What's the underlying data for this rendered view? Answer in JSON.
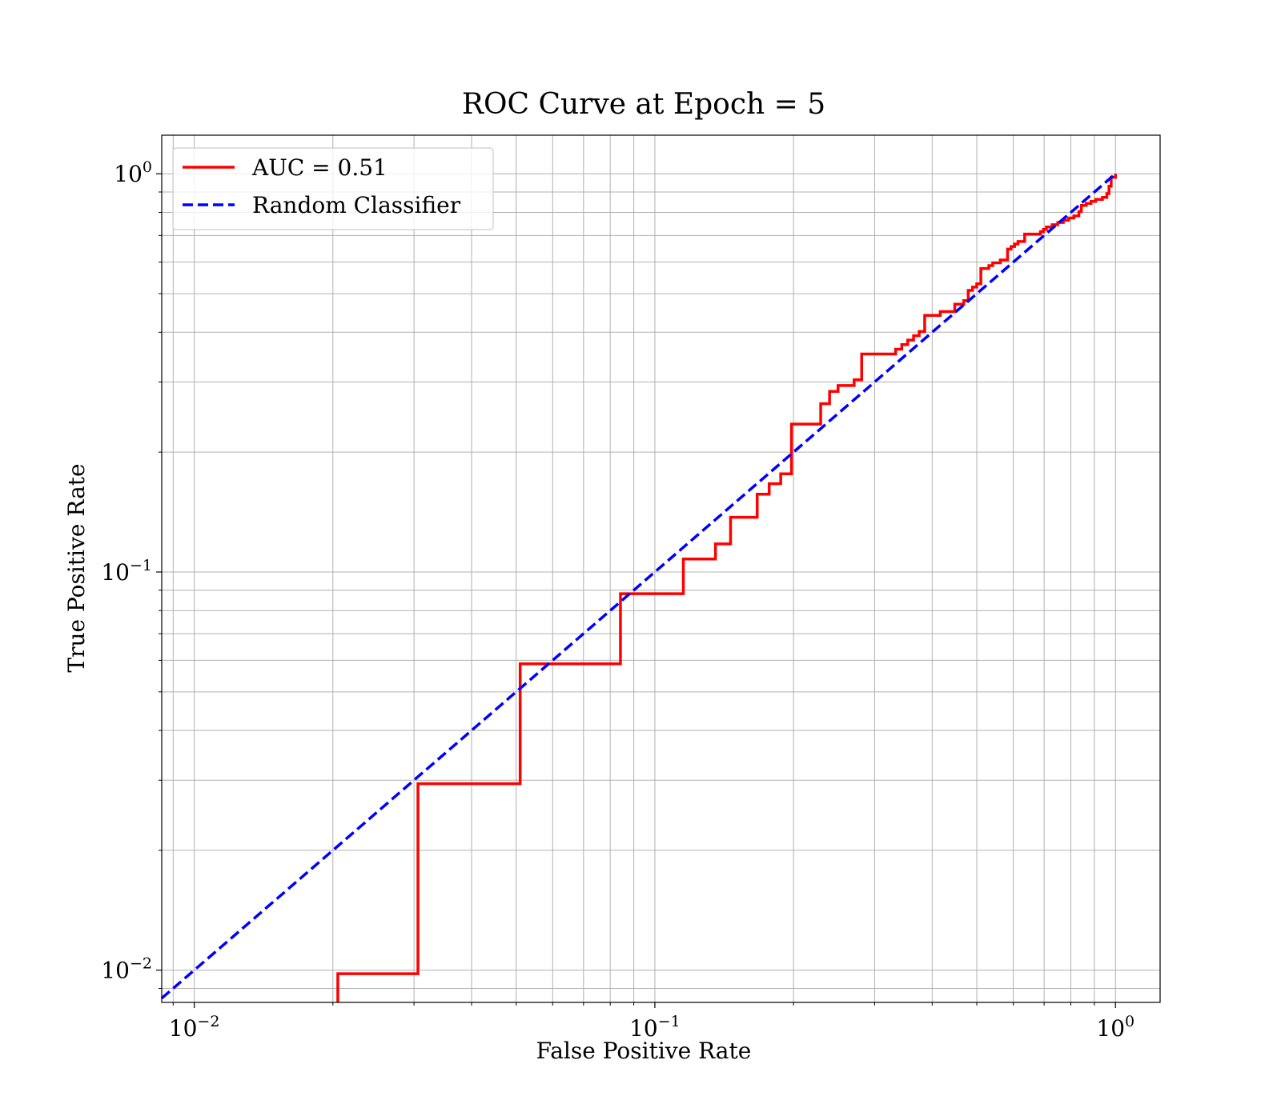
{
  "chart_data": {
    "type": "line",
    "title": "ROC Curve at Epoch = 5",
    "xlabel": "False Positive Rate",
    "ylabel": "True Positive Rate",
    "xscale": "log",
    "yscale": "log",
    "xlim": [
      0.0085,
      1.25
    ],
    "ylim": [
      0.0083,
      1.25
    ],
    "grid": true,
    "grid_minor": true,
    "legend_position": "top-left",
    "x_ticks": [
      {
        "value": 0.01,
        "base": "10",
        "exp": "−2"
      },
      {
        "value": 0.1,
        "base": "10",
        "exp": "−1"
      },
      {
        "value": 1,
        "base": "10",
        "exp": "0"
      }
    ],
    "y_ticks": [
      {
        "value": 0.01,
        "base": "10",
        "exp": "−2"
      },
      {
        "value": 0.1,
        "base": "10",
        "exp": "−1"
      },
      {
        "value": 1,
        "base": "10",
        "exp": "0"
      }
    ],
    "series": [
      {
        "name": "AUC = 0.51",
        "color": "#ff0000",
        "style": "solid",
        "drawstyle": "steps",
        "points": [
          [
            0.0205,
            0.0083
          ],
          [
            0.0205,
            0.0098
          ],
          [
            0.0306,
            0.0098
          ],
          [
            0.0306,
            0.0294
          ],
          [
            0.051,
            0.0294
          ],
          [
            0.051,
            0.0588
          ],
          [
            0.0842,
            0.0588
          ],
          [
            0.0842,
            0.0882
          ],
          [
            0.1153,
            0.0882
          ],
          [
            0.1153,
            0.1078
          ],
          [
            0.1354,
            0.1078
          ],
          [
            0.1354,
            0.1176
          ],
          [
            0.146,
            0.1176
          ],
          [
            0.146,
            0.1372
          ],
          [
            0.1668,
            0.1372
          ],
          [
            0.1668,
            0.1568
          ],
          [
            0.1771,
            0.1568
          ],
          [
            0.1771,
            0.1666
          ],
          [
            0.1876,
            0.1666
          ],
          [
            0.1876,
            0.1764
          ],
          [
            0.198,
            0.1764
          ],
          [
            0.198,
            0.2352
          ],
          [
            0.2291,
            0.2352
          ],
          [
            0.2291,
            0.2646
          ],
          [
            0.2395,
            0.2646
          ],
          [
            0.2395,
            0.2842
          ],
          [
            0.2499,
            0.2842
          ],
          [
            0.2499,
            0.294
          ],
          [
            0.2708,
            0.294
          ],
          [
            0.2708,
            0.3038
          ],
          [
            0.2812,
            0.3038
          ],
          [
            0.2812,
            0.3528
          ],
          [
            0.3332,
            0.3528
          ],
          [
            0.3332,
            0.3626
          ],
          [
            0.3436,
            0.3626
          ],
          [
            0.3436,
            0.3724
          ],
          [
            0.354,
            0.3724
          ],
          [
            0.354,
            0.3822
          ],
          [
            0.3645,
            0.3822
          ],
          [
            0.3645,
            0.392
          ],
          [
            0.3749,
            0.392
          ],
          [
            0.3749,
            0.4018
          ],
          [
            0.3853,
            0.4018
          ],
          [
            0.3853,
            0.441
          ],
          [
            0.4165,
            0.441
          ],
          [
            0.4165,
            0.4508
          ],
          [
            0.4478,
            0.4508
          ],
          [
            0.4478,
            0.4704
          ],
          [
            0.4686,
            0.4704
          ],
          [
            0.4686,
            0.4802
          ],
          [
            0.479,
            0.4802
          ],
          [
            0.479,
            0.5096
          ],
          [
            0.4894,
            0.5096
          ],
          [
            0.4894,
            0.5194
          ],
          [
            0.4998,
            0.5194
          ],
          [
            0.4998,
            0.5292
          ],
          [
            0.5102,
            0.5292
          ],
          [
            0.5102,
            0.5782
          ],
          [
            0.531,
            0.5782
          ],
          [
            0.531,
            0.588
          ],
          [
            0.5414,
            0.588
          ],
          [
            0.5414,
            0.5978
          ],
          [
            0.5623,
            0.5978
          ],
          [
            0.5623,
            0.6076
          ],
          [
            0.5831,
            0.6076
          ],
          [
            0.5831,
            0.6468
          ],
          [
            0.5935,
            0.6468
          ],
          [
            0.5935,
            0.6566
          ],
          [
            0.6039,
            0.6566
          ],
          [
            0.6039,
            0.6664
          ],
          [
            0.6143,
            0.6664
          ],
          [
            0.6143,
            0.6762
          ],
          [
            0.6351,
            0.6762
          ],
          [
            0.6351,
            0.7056
          ],
          [
            0.6872,
            0.7056
          ],
          [
            0.6872,
            0.7154
          ],
          [
            0.6976,
            0.7154
          ],
          [
            0.6976,
            0.7252
          ],
          [
            0.708,
            0.7252
          ],
          [
            0.708,
            0.735
          ],
          [
            0.7288,
            0.735
          ],
          [
            0.7288,
            0.7448
          ],
          [
            0.7496,
            0.7448
          ],
          [
            0.7496,
            0.7546
          ],
          [
            0.7705,
            0.7546
          ],
          [
            0.7705,
            0.7644
          ],
          [
            0.7913,
            0.7644
          ],
          [
            0.7913,
            0.7742
          ],
          [
            0.8121,
            0.7742
          ],
          [
            0.8121,
            0.784
          ],
          [
            0.8329,
            0.784
          ],
          [
            0.8329,
            0.8036
          ],
          [
            0.8433,
            0.8036
          ],
          [
            0.8433,
            0.833
          ],
          [
            0.8642,
            0.833
          ],
          [
            0.8642,
            0.8428
          ],
          [
            0.885,
            0.8428
          ],
          [
            0.885,
            0.8526
          ],
          [
            0.9058,
            0.8526
          ],
          [
            0.9058,
            0.8624
          ],
          [
            0.937,
            0.8624
          ],
          [
            0.937,
            0.8722
          ],
          [
            0.9578,
            0.8722
          ],
          [
            0.9578,
            0.8918
          ],
          [
            0.9682,
            0.8918
          ],
          [
            0.9682,
            0.931
          ],
          [
            0.9787,
            0.931
          ],
          [
            0.9787,
            0.98
          ],
          [
            1.0,
            0.98
          ],
          [
            1.0,
            1.0
          ]
        ]
      },
      {
        "name": "Random Classifier",
        "color": "#0000ff",
        "style": "dashed",
        "points": [
          [
            0.0085,
            0.0085
          ],
          [
            1.0,
            1.0
          ]
        ]
      }
    ]
  }
}
